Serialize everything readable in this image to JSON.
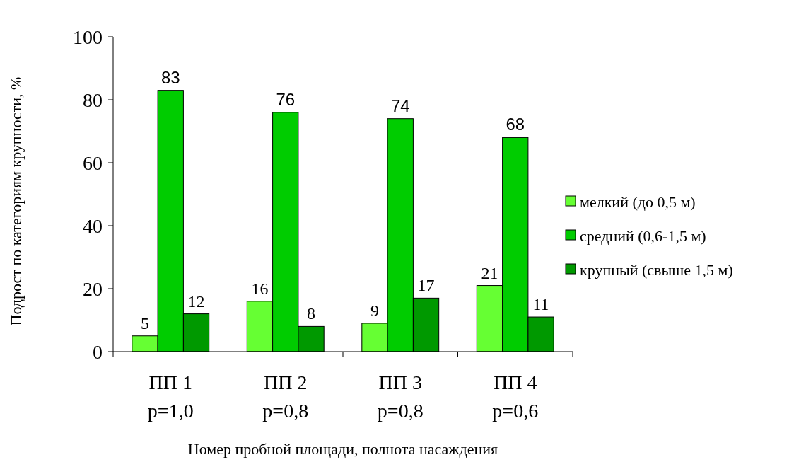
{
  "chart_data": {
    "type": "bar",
    "xlabel": "Номер пробной площади, полнота насаждения",
    "ylabel": "Подрост по категориям крупности, %",
    "categories": [
      "ПП 1\nр=1,0",
      "ПП 2\nр=0,8",
      "ПП 3\nр=0,8",
      "ПП 4\nр=0,6"
    ],
    "series": [
      {
        "name": "мелкий (до 0,5 м)",
        "color": "#66ff33",
        "values": [
          5,
          16,
          9,
          21
        ]
      },
      {
        "name": "средний (0,6-1,5 м)",
        "color": "#00cc00",
        "values": [
          83,
          76,
          74,
          68
        ]
      },
      {
        "name": "крупный (свыше 1,5 м)",
        "color": "#009900",
        "values": [
          12,
          8,
          17,
          11
        ]
      }
    ],
    "ylim": [
      0,
      100
    ],
    "yticks": [
      0,
      20,
      40,
      60,
      80,
      100
    ],
    "data_labels": true,
    "grid": false,
    "legend": "right"
  }
}
